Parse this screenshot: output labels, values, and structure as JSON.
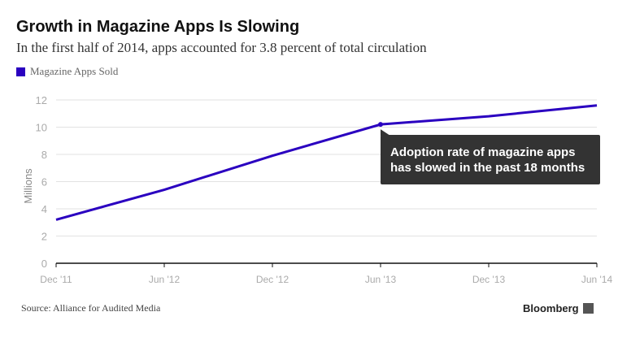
{
  "chart_data": {
    "type": "line",
    "title": "Growth in Magazine Apps Is Slowing",
    "subtitle": "In the first half of 2014, apps accounted for 3.8 percent of total circulation",
    "ylabel": "Millions",
    "xlabel": "",
    "categories": [
      "Dec '11",
      "Jun '12",
      "Dec '12",
      "Jun '13",
      "Dec '13",
      "Jun '14"
    ],
    "yticks": [
      0,
      2,
      4,
      6,
      8,
      10,
      12
    ],
    "ylim": [
      0,
      12
    ],
    "grid": true,
    "legend": "top-left",
    "series": [
      {
        "name": "Magazine Apps Sold",
        "values": [
          3.2,
          5.4,
          7.9,
          10.2,
          10.8,
          11.6
        ],
        "color": "#2a00c0"
      }
    ],
    "annotation": {
      "text_line1": "Adoption rate of magazine apps",
      "text_line2": "has slowed in the past 18 months",
      "at": "Jun '13"
    },
    "source": "Source: Alliance for Audited Media",
    "brand": "Bloomberg"
  }
}
